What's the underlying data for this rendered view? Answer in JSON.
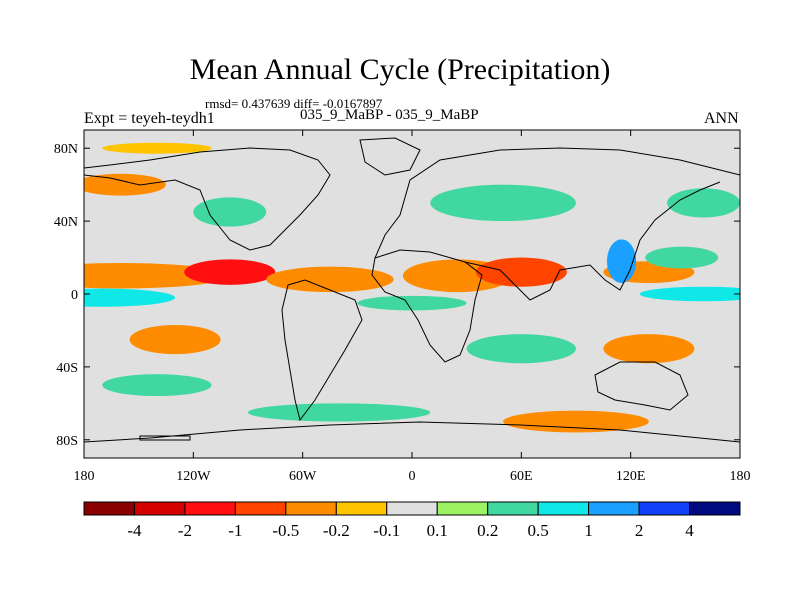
{
  "header": {
    "title": "Mean Annual Cycle (Precipitation)",
    "stats": "rmsd= 0.437639 diff= -0.0167897",
    "left_label": "Expt = teyeh-teydh1",
    "center_label": "035_9_MaBP - 035_9_MaBP",
    "right_label": "ANN"
  },
  "chart_data": {
    "type": "heatmap",
    "title": "Mean Annual Cycle (Precipitation)",
    "subtitle": "035_9_MaBP - 035_9_MaBP",
    "annotations": [
      "rmsd= 0.437639 diff= -0.0167897",
      "Expt = teyeh-teydh1",
      "ANN"
    ],
    "projection": "cylindrical equidistant",
    "xlim": [
      -180,
      180
    ],
    "ylim": [
      -90,
      90
    ],
    "x_ticks": [
      {
        "value": -180,
        "label": "180"
      },
      {
        "value": -120,
        "label": "120W"
      },
      {
        "value": -60,
        "label": "60W"
      },
      {
        "value": 0,
        "label": "0"
      },
      {
        "value": 60,
        "label": "60E"
      },
      {
        "value": 120,
        "label": "120E"
      },
      {
        "value": 180,
        "label": "180"
      }
    ],
    "y_ticks": [
      {
        "value": 80,
        "label": "80N"
      },
      {
        "value": 40,
        "label": "40N"
      },
      {
        "value": 0,
        "label": "0"
      },
      {
        "value": -40,
        "label": "40S"
      },
      {
        "value": -80,
        "label": "80S"
      }
    ],
    "colorbar": {
      "levels": [
        "-4",
        "-2",
        "-1",
        "-0.5",
        "-0.2",
        "-0.1",
        "0.1",
        "0.2",
        "0.5",
        "1",
        "2",
        "4"
      ],
      "colors": [
        "#8b0000",
        "#d40000",
        "#ff0f0f",
        "#ff4400",
        "#ff8c00",
        "#ffc400",
        "#e0e0e0",
        "#9bf263",
        "#40d8a0",
        "#10e8e8",
        "#1aa0ff",
        "#1040f8",
        "#000a80"
      ]
    },
    "regions": [
      {
        "lon": -160,
        "lat": 10,
        "dlon": 60,
        "dlat": 7,
        "value": -0.5
      },
      {
        "lon": -100,
        "lat": 12,
        "dlon": 25,
        "dlat": 7,
        "value": -1.5
      },
      {
        "lon": -45,
        "lat": 8,
        "dlon": 35,
        "dlat": 7,
        "value": -0.5
      },
      {
        "lon": 25,
        "lat": 10,
        "dlon": 30,
        "dlat": 9,
        "value": -0.5
      },
      {
        "lon": 60,
        "lat": 12,
        "dlon": 25,
        "dlat": 8,
        "value": -0.7
      },
      {
        "lon": 130,
        "lat": 12,
        "dlon": 25,
        "dlat": 6,
        "value": -0.5
      },
      {
        "lon": -170,
        "lat": -2,
        "dlon": 40,
        "dlat": 5,
        "value": 0.5
      },
      {
        "lon": 160,
        "lat": 0,
        "dlon": 35,
        "dlat": 4,
        "value": 0.5
      },
      {
        "lon": 0,
        "lat": -5,
        "dlon": 30,
        "dlat": 4,
        "value": 0.3
      },
      {
        "lon": 115,
        "lat": 18,
        "dlon": 8,
        "dlat": 12,
        "value": 1.2
      },
      {
        "lon": 148,
        "lat": 20,
        "dlon": 20,
        "dlat": 6,
        "value": 0.3
      },
      {
        "lon": -130,
        "lat": -25,
        "dlon": 25,
        "dlat": 8,
        "value": -0.3
      },
      {
        "lon": -140,
        "lat": -50,
        "dlon": 30,
        "dlat": 6,
        "value": 0.3
      },
      {
        "lon": 130,
        "lat": -30,
        "dlon": 25,
        "dlat": 8,
        "value": -0.5
      },
      {
        "lon": 60,
        "lat": -30,
        "dlon": 30,
        "dlat": 8,
        "value": 0.3
      },
      {
        "lon": -100,
        "lat": 45,
        "dlon": 20,
        "dlat": 8,
        "value": 0.25
      },
      {
        "lon": 50,
        "lat": 50,
        "dlon": 40,
        "dlat": 10,
        "value": 0.25
      },
      {
        "lon": -160,
        "lat": 60,
        "dlon": 25,
        "dlat": 6,
        "value": -0.3
      },
      {
        "lon": 160,
        "lat": 50,
        "dlon": 20,
        "dlat": 8,
        "value": 0.3
      },
      {
        "lon": -40,
        "lat": -65,
        "dlon": 50,
        "dlat": 5,
        "value": 0.3
      },
      {
        "lon": 90,
        "lat": -70,
        "dlon": 40,
        "dlat": 6,
        "value": -0.3
      },
      {
        "lon": -140,
        "lat": 80,
        "dlon": 30,
        "dlat": 3,
        "value": -0.2
      }
    ]
  }
}
